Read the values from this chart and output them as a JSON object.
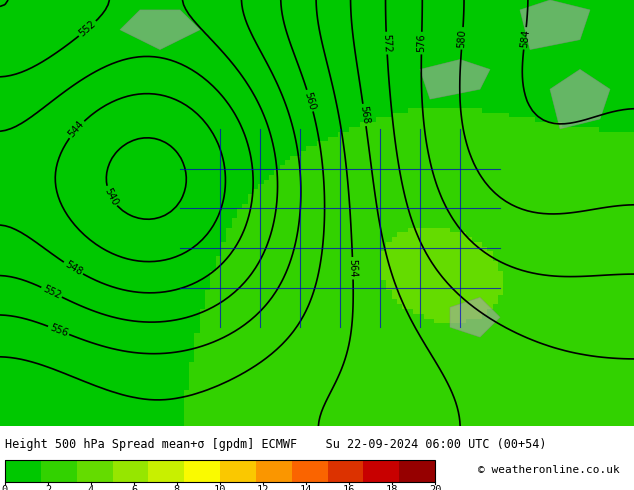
{
  "title_line": "Height 500 hPa Spread mean+σ [gpdm] ECMWF    Su 22-09-2024 06:00 UTC (00+54)",
  "copyright": "© weatheronline.co.uk",
  "colorbar_values": [
    0,
    2,
    4,
    6,
    8,
    10,
    12,
    14,
    16,
    18,
    20
  ],
  "colorbar_colors": [
    "#00c800",
    "#32d200",
    "#64dc00",
    "#96e600",
    "#c8f000",
    "#fafa00",
    "#fac800",
    "#fa9600",
    "#fa6400",
    "#dc3200",
    "#c80000",
    "#960000"
  ],
  "bg_color": "#00c800",
  "map_bg": "#00c800",
  "contour_color": "#000000",
  "blue_contour_color": "#0000cc",
  "label_bg": "#ffffff",
  "fig_width": 6.34,
  "fig_height": 4.9,
  "dpi": 100
}
